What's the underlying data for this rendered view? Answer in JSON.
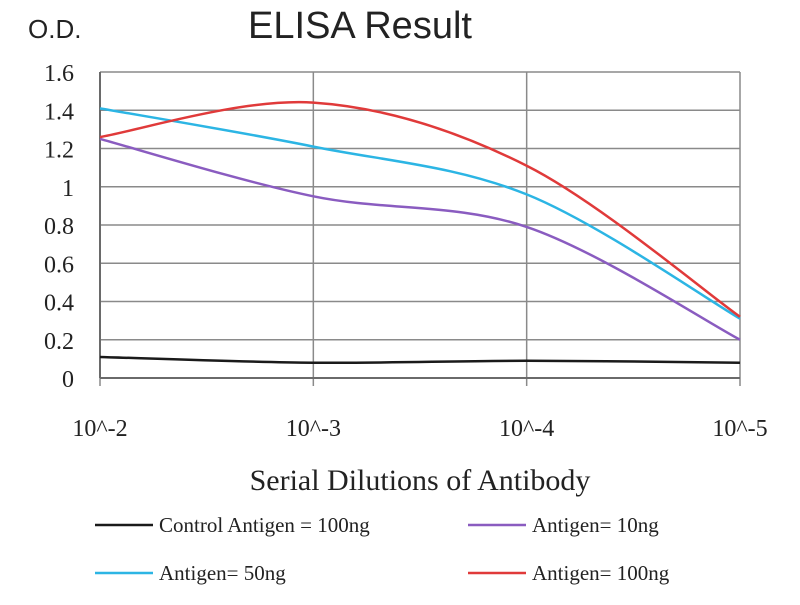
{
  "chart_data": {
    "type": "line",
    "title": "ELISA Result",
    "ylabel": "O.D.",
    "xlabel": "Serial Dilutions of Antibody",
    "categories": [
      "10^-2",
      "10^-3",
      "10^-4",
      "10^-5"
    ],
    "ylim": [
      0,
      1.6
    ],
    "yticks": [
      "0",
      "0.2",
      "0.4",
      "0.6",
      "0.8",
      "1",
      "1.2",
      "1.4",
      "1.6"
    ],
    "grid": true,
    "legend_position": "bottom",
    "series": [
      {
        "name": "Control Antigen = 100ng",
        "color": "#1a1a1a",
        "values": [
          0.11,
          0.08,
          0.09,
          0.08
        ]
      },
      {
        "name": "Antigen= 10ng",
        "color": "#8a5cc0",
        "values": [
          1.25,
          0.95,
          0.79,
          0.2
        ]
      },
      {
        "name": "Antigen= 50ng",
        "color": "#2cb5e4",
        "values": [
          1.41,
          1.21,
          0.96,
          0.31
        ]
      },
      {
        "name": "Antigen= 100ng",
        "color": "#e03a3a",
        "values": [
          1.26,
          1.44,
          1.11,
          0.32
        ]
      }
    ]
  }
}
